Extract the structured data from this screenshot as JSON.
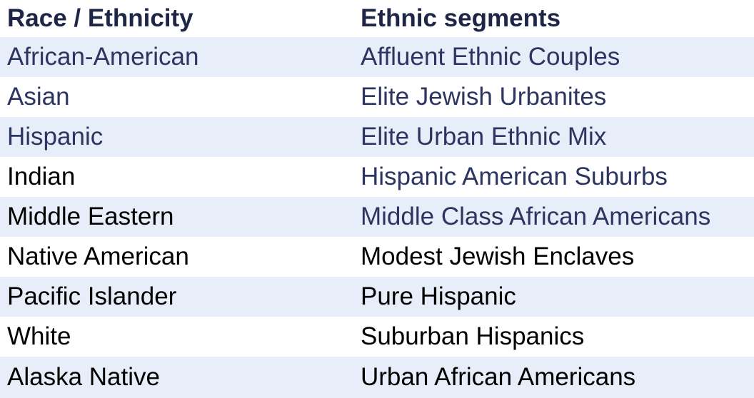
{
  "table": {
    "header": [
      "Race / Ethnicity",
      "Ethnic segments"
    ],
    "rows": [
      [
        "African-American",
        "Affluent Ethnic Couples"
      ],
      [
        "Asian",
        "Elite Jewish Urbanites"
      ],
      [
        "Hispanic",
        "Elite Urban Ethnic Mix"
      ],
      [
        "Indian",
        "Hispanic American Suburbs"
      ],
      [
        "Middle Eastern",
        "Middle Class African Americans"
      ],
      [
        "Native American",
        "Modest Jewish Enclaves"
      ],
      [
        "Pacific Islander",
        "Pure Hispanic"
      ],
      [
        "White",
        "Suburban Hispanics"
      ],
      [
        "Alaska Native",
        "Urban African Americans"
      ]
    ]
  }
}
